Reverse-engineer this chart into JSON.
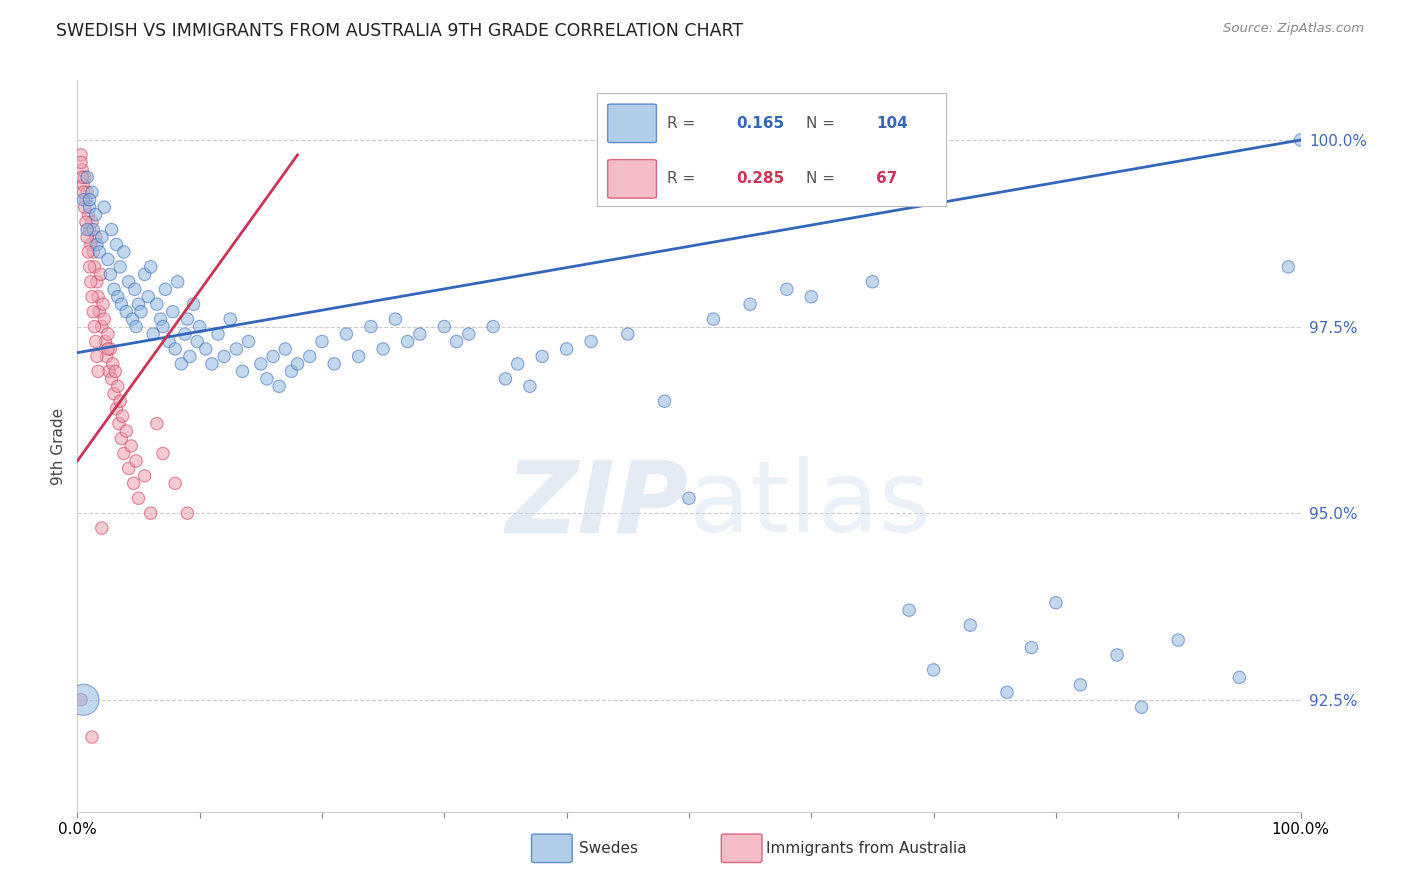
{
  "title": "SWEDISH VS IMMIGRANTS FROM AUSTRALIA 9TH GRADE CORRELATION CHART",
  "source": "Source: ZipAtlas.com",
  "ylabel": "9th Grade",
  "blue_R": 0.165,
  "blue_N": 104,
  "pink_R": 0.285,
  "pink_N": 67,
  "blue_color": "#90B8E0",
  "pink_color": "#F0A0B0",
  "line_blue": "#3366BB",
  "line_pink": "#CC3355",
  "xrange": [
    0.0,
    1.0
  ],
  "yrange": [
    91.0,
    100.8
  ],
  "ytick_vals": [
    92.5,
    95.0,
    97.5,
    100.0
  ],
  "ytick_labels": [
    "92.5%",
    "95.0%",
    "97.5%",
    "100.0%"
  ],
  "legend_label_blue": "Swedes",
  "legend_label_pink": "Immigrants from Australia",
  "blue_x": [
    0.005,
    0.008,
    0.01,
    0.012,
    0.013,
    0.015,
    0.016,
    0.018,
    0.02,
    0.022,
    0.025,
    0.027,
    0.028,
    0.03,
    0.032,
    0.033,
    0.035,
    0.036,
    0.038,
    0.04,
    0.042,
    0.045,
    0.047,
    0.048,
    0.05,
    0.052,
    0.055,
    0.058,
    0.06,
    0.062,
    0.065,
    0.068,
    0.07,
    0.072,
    0.075,
    0.078,
    0.08,
    0.082,
    0.085,
    0.088,
    0.09,
    0.092,
    0.095,
    0.098,
    0.1,
    0.105,
    0.11,
    0.115,
    0.12,
    0.125,
    0.13,
    0.135,
    0.14,
    0.15,
    0.155,
    0.16,
    0.165,
    0.17,
    0.175,
    0.18,
    0.19,
    0.2,
    0.21,
    0.22,
    0.23,
    0.24,
    0.25,
    0.26,
    0.27,
    0.28,
    0.3,
    0.31,
    0.32,
    0.34,
    0.35,
    0.36,
    0.37,
    0.38,
    0.4,
    0.42,
    0.45,
    0.48,
    0.5,
    0.52,
    0.55,
    0.58,
    0.6,
    0.65,
    0.68,
    0.7,
    0.73,
    0.76,
    0.78,
    0.8,
    0.82,
    0.85,
    0.87,
    0.9,
    0.95,
    0.005,
    0.008,
    0.01,
    0.99,
    1.0
  ],
  "blue_y": [
    99.2,
    99.5,
    99.1,
    99.3,
    98.8,
    99.0,
    98.6,
    98.5,
    98.7,
    99.1,
    98.4,
    98.2,
    98.8,
    98.0,
    98.6,
    97.9,
    98.3,
    97.8,
    98.5,
    97.7,
    98.1,
    97.6,
    98.0,
    97.5,
    97.8,
    97.7,
    98.2,
    97.9,
    98.3,
    97.4,
    97.8,
    97.6,
    97.5,
    98.0,
    97.3,
    97.7,
    97.2,
    98.1,
    97.0,
    97.4,
    97.6,
    97.1,
    97.8,
    97.3,
    97.5,
    97.2,
    97.0,
    97.4,
    97.1,
    97.6,
    97.2,
    96.9,
    97.3,
    97.0,
    96.8,
    97.1,
    96.7,
    97.2,
    96.9,
    97.0,
    97.1,
    97.3,
    97.0,
    97.4,
    97.1,
    97.5,
    97.2,
    97.6,
    97.3,
    97.4,
    97.5,
    97.3,
    97.4,
    97.5,
    96.8,
    97.0,
    96.7,
    97.1,
    97.2,
    97.3,
    97.4,
    96.5,
    95.2,
    97.6,
    97.8,
    98.0,
    97.9,
    98.1,
    93.7,
    92.9,
    93.5,
    92.6,
    93.2,
    93.8,
    92.7,
    93.1,
    92.4,
    93.3,
    92.8,
    92.5,
    98.8,
    99.2,
    98.3,
    100.0
  ],
  "blue_size": [
    80,
    80,
    80,
    80,
    80,
    80,
    80,
    80,
    80,
    80,
    80,
    80,
    80,
    80,
    80,
    80,
    80,
    80,
    80,
    80,
    80,
    80,
    80,
    80,
    80,
    80,
    80,
    80,
    80,
    80,
    80,
    80,
    80,
    80,
    80,
    80,
    80,
    80,
    80,
    80,
    80,
    80,
    80,
    80,
    80,
    80,
    80,
    80,
    80,
    80,
    80,
    80,
    80,
    80,
    80,
    80,
    80,
    80,
    80,
    80,
    80,
    80,
    80,
    80,
    80,
    80,
    80,
    80,
    80,
    80,
    80,
    80,
    80,
    80,
    80,
    80,
    80,
    80,
    80,
    80,
    80,
    80,
    80,
    80,
    80,
    80,
    80,
    80,
    80,
    80,
    80,
    80,
    80,
    80,
    80,
    80,
    80,
    80,
    80,
    500,
    80,
    80,
    80,
    80
  ],
  "pink_x": [
    0.003,
    0.004,
    0.005,
    0.006,
    0.007,
    0.008,
    0.009,
    0.01,
    0.011,
    0.012,
    0.013,
    0.014,
    0.015,
    0.016,
    0.017,
    0.018,
    0.019,
    0.02,
    0.021,
    0.022,
    0.023,
    0.024,
    0.025,
    0.026,
    0.027,
    0.028,
    0.029,
    0.03,
    0.031,
    0.032,
    0.033,
    0.034,
    0.035,
    0.036,
    0.037,
    0.038,
    0.04,
    0.042,
    0.044,
    0.046,
    0.048,
    0.05,
    0.055,
    0.06,
    0.065,
    0.07,
    0.08,
    0.09,
    0.003,
    0.004,
    0.005,
    0.006,
    0.007,
    0.008,
    0.009,
    0.01,
    0.011,
    0.012,
    0.013,
    0.014,
    0.015,
    0.016,
    0.017,
    0.003,
    0.012,
    0.02,
    0.025
  ],
  "pink_y": [
    99.8,
    99.6,
    99.4,
    99.5,
    99.2,
    99.3,
    99.0,
    98.8,
    98.6,
    98.9,
    98.5,
    98.3,
    98.7,
    98.1,
    97.9,
    97.7,
    98.2,
    97.5,
    97.8,
    97.6,
    97.3,
    97.1,
    97.4,
    96.9,
    97.2,
    96.8,
    97.0,
    96.6,
    96.9,
    96.4,
    96.7,
    96.2,
    96.5,
    96.0,
    96.3,
    95.8,
    96.1,
    95.6,
    95.9,
    95.4,
    95.7,
    95.2,
    95.5,
    95.0,
    96.2,
    95.8,
    95.4,
    95.0,
    99.7,
    99.5,
    99.3,
    99.1,
    98.9,
    98.7,
    98.5,
    98.3,
    98.1,
    97.9,
    97.7,
    97.5,
    97.3,
    97.1,
    96.9,
    92.5,
    92.0,
    94.8,
    97.2
  ],
  "pink_size": [
    80,
    80,
    80,
    80,
    80,
    80,
    80,
    80,
    80,
    80,
    80,
    80,
    80,
    80,
    80,
    80,
    80,
    80,
    80,
    80,
    80,
    80,
    80,
    80,
    80,
    80,
    80,
    80,
    80,
    80,
    80,
    80,
    80,
    80,
    80,
    80,
    80,
    80,
    80,
    80,
    80,
    80,
    80,
    80,
    80,
    80,
    80,
    80,
    80,
    80,
    80,
    80,
    80,
    80,
    80,
    80,
    80,
    80,
    80,
    80,
    80,
    80,
    80,
    80,
    80,
    80,
    80
  ],
  "trend_blue_x0": 0.0,
  "trend_blue_y0": 97.15,
  "trend_blue_x1": 1.0,
  "trend_blue_y1": 100.0,
  "trend_pink_x0": 0.0,
  "trend_pink_y0": 95.7,
  "trend_pink_x1": 0.18,
  "trend_pink_y1": 99.8
}
